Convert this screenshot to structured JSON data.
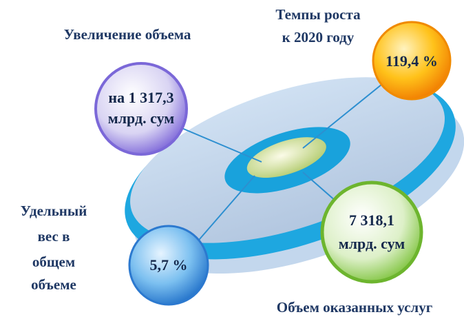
{
  "items": [
    {
      "label": [
        "Увеличение объема"
      ],
      "value": [
        "на 1 317,3",
        "млрд. сум"
      ]
    },
    {
      "label": [
        "Темпы роста",
        "к 2020 году"
      ],
      "value": [
        "119,4 %"
      ]
    },
    {
      "label": [
        "Объем оказанных услуг"
      ],
      "value": [
        "7 318,1",
        "млрд. сум"
      ]
    },
    {
      "label": [
        "Удельный",
        "вес в",
        "общем",
        "объеме"
      ],
      "value": [
        "5,7 %"
      ]
    }
  ]
}
